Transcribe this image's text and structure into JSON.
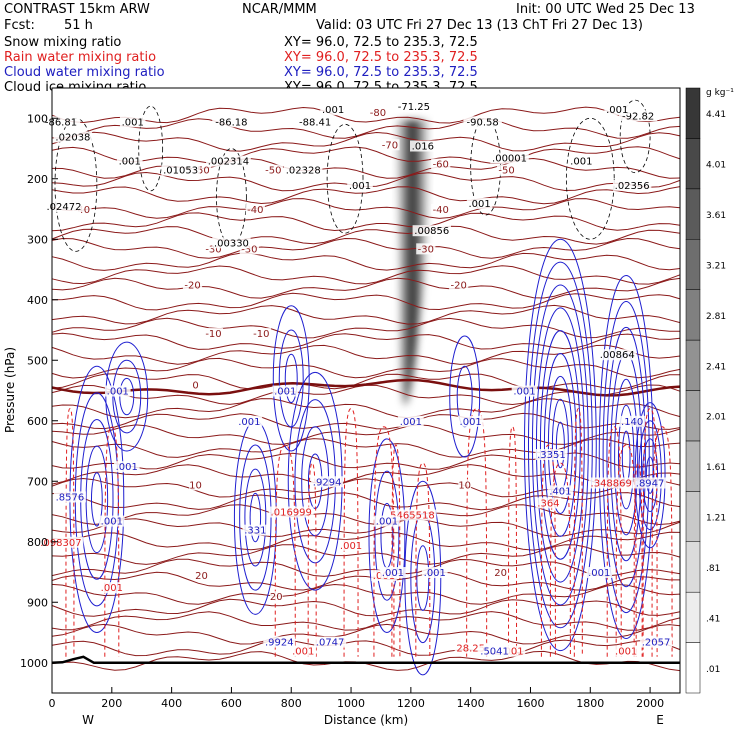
{
  "header": {
    "model": "CONTRAST 15km ARW",
    "org": "NCAR/MMM",
    "init": "Init: 00 UTC Wed 25 Dec 13",
    "fcst_label": "Fcst:",
    "fcst_value": "51 h",
    "valid": "Valid: 03 UTC Fri 27 Dec 13 (13 ChT Fri 27 Dec 13)"
  },
  "fields": [
    {
      "label": "Snow mixing ratio",
      "xy": "XY=  96.0, 72.5 to 235.3, 72.5",
      "color": "#000000"
    },
    {
      "label": "Rain water mixing ratio",
      "xy": "XY=  96.0, 72.5 to 235.3, 72.5",
      "color": "#e02020"
    },
    {
      "label": "Cloud water mixing ratio",
      "xy": "XY=  96.0, 72.5 to 235.3, 72.5",
      "color": "#2020c0"
    },
    {
      "label": "Cloud ice mixing ratio",
      "xy": "XY=  96.0, 72.5 to 235.3, 72.5",
      "color": "#000000"
    }
  ],
  "chart_data": {
    "type": "heatmap",
    "xlabel": "Distance (km)",
    "ylabel": "Pressure (hPa)",
    "xlim": [
      0,
      2100
    ],
    "ylim": [
      1050,
      50
    ],
    "xticks": [
      "0",
      "200",
      "400",
      "600",
      "800",
      "1000",
      "1200",
      "1400",
      "1600",
      "1800",
      "2000"
    ],
    "yticks": [
      "100",
      "200",
      "300",
      "400",
      "500",
      "600",
      "700",
      "800",
      "900",
      "1000"
    ],
    "x_end_labels": {
      "left": "W",
      "right": "E"
    },
    "colorbar": {
      "unit": "g kg⁻¹",
      "levels": [
        ".01",
        ".41",
        ".81",
        "1.21",
        "1.61",
        "2.01",
        "2.41",
        "2.81",
        "3.21",
        "3.61",
        "4.01",
        "4.41"
      ]
    },
    "temperature_labels": [
      {
        "text": "-80",
        "x": 1090,
        "p": 95
      },
      {
        "text": "-70",
        "x": 1130,
        "p": 148
      },
      {
        "text": "-60",
        "x": 1300,
        "p": 180
      },
      {
        "text": "-50",
        "x": 500,
        "p": 190
      },
      {
        "text": "-50",
        "x": 740,
        "p": 190
      },
      {
        "text": "-50",
        "x": 1520,
        "p": 190
      },
      {
        "text": "-40",
        "x": 100,
        "p": 255
      },
      {
        "text": "-40",
        "x": 680,
        "p": 255
      },
      {
        "text": "-40",
        "x": 1300,
        "p": 255
      },
      {
        "text": "-30",
        "x": 540,
        "p": 320
      },
      {
        "text": "-30",
        "x": 660,
        "p": 320
      },
      {
        "text": "-30",
        "x": 1250,
        "p": 320
      },
      {
        "text": "-20",
        "x": 470,
        "p": 380
      },
      {
        "text": "-20",
        "x": 1360,
        "p": 380
      },
      {
        "text": "-10",
        "x": 540,
        "p": 460
      },
      {
        "text": "-10",
        "x": 700,
        "p": 460
      },
      {
        "text": "0",
        "x": 480,
        "p": 545
      },
      {
        "text": "10",
        "x": 480,
        "p": 710
      },
      {
        "text": "10",
        "x": 1380,
        "p": 710
      },
      {
        "text": "20",
        "x": 500,
        "p": 860
      },
      {
        "text": "20",
        "x": 750,
        "p": 895
      },
      {
        "text": "20",
        "x": 1500,
        "p": 855
      }
    ],
    "annotations_black": [
      {
        "text": "-86.81",
        "x": 30,
        "p": 110
      },
      {
        "text": ".02038",
        "x": 70,
        "p": 135
      },
      {
        "text": ".001",
        "x": 270,
        "p": 110
      },
      {
        "text": "-86.18",
        "x": 600,
        "p": 110
      },
      {
        "text": "-88.41",
        "x": 880,
        "p": 110
      },
      {
        "text": "-71.25",
        "x": 1210,
        "p": 85
      },
      {
        "text": "-90.58",
        "x": 1440,
        "p": 110
      },
      {
        "text": "-92.82",
        "x": 1960,
        "p": 100
      },
      {
        "text": ".001",
        "x": 1890,
        "p": 90
      },
      {
        "text": ".001",
        "x": 940,
        "p": 90
      },
      {
        "text": ".001",
        "x": 260,
        "p": 175
      },
      {
        "text": ".01053",
        "x": 430,
        "p": 190
      },
      {
        "text": ".002314",
        "x": 590,
        "p": 175
      },
      {
        "text": ".02328",
        "x": 840,
        "p": 190
      },
      {
        "text": ".016",
        "x": 1240,
        "p": 150
      },
      {
        "text": ".00001",
        "x": 1530,
        "p": 170
      },
      {
        "text": ".001",
        "x": 1770,
        "p": 175
      },
      {
        "text": ".02356",
        "x": 1940,
        "p": 215
      },
      {
        "text": ".02472",
        "x": 40,
        "p": 250
      },
      {
        "text": ".001",
        "x": 1030,
        "p": 215
      },
      {
        "text": ".001",
        "x": 1430,
        "p": 245
      },
      {
        "text": ".00330",
        "x": 600,
        "p": 310
      },
      {
        "text": ".00856",
        "x": 1270,
        "p": 290
      },
      {
        "text": ".00864",
        "x": 1890,
        "p": 495
      }
    ],
    "annotations_red": [
      {
        "text": ".016999",
        "x": 800,
        "p": 755
      },
      {
        "text": ".5465518",
        "x": 1200,
        "p": 760
      },
      {
        "text": ".364",
        "x": 1660,
        "p": 740
      },
      {
        "text": ".348869",
        "x": 1870,
        "p": 707
      },
      {
        "text": ".098307",
        "x": 30,
        "p": 805
      },
      {
        "text": ".001",
        "x": 200,
        "p": 880
      },
      {
        "text": ".001",
        "x": 1000,
        "p": 810
      },
      {
        "text": ".001",
        "x": 1110,
        "p": 860
      },
      {
        "text": ".001",
        "x": 840,
        "p": 985
      },
      {
        "text": "28.25",
        "x": 1400,
        "p": 980
      },
      {
        "text": ".001",
        "x": 1540,
        "p": 985
      },
      {
        "text": ".001",
        "x": 1920,
        "p": 985
      }
    ],
    "annotations_blue": [
      {
        "text": ".001",
        "x": 220,
        "p": 555
      },
      {
        "text": ".001",
        "x": 780,
        "p": 555
      },
      {
        "text": ".001",
        "x": 660,
        "p": 605
      },
      {
        "text": ".001",
        "x": 1200,
        "p": 605
      },
      {
        "text": ".001",
        "x": 1400,
        "p": 605
      },
      {
        "text": ".001",
        "x": 1580,
        "p": 555
      },
      {
        "text": ".001",
        "x": 250,
        "p": 680
      },
      {
        "text": ".8576",
        "x": 60,
        "p": 730
      },
      {
        "text": ".9294",
        "x": 920,
        "p": 705
      },
      {
        "text": ".3351",
        "x": 1670,
        "p": 660
      },
      {
        "text": ".401",
        "x": 1700,
        "p": 720
      },
      {
        "text": ".140",
        "x": 1940,
        "p": 605
      },
      {
        "text": ".8947",
        "x": 2000,
        "p": 707
      },
      {
        "text": ".001",
        "x": 200,
        "p": 770
      },
      {
        "text": ".331",
        "x": 680,
        "p": 785
      },
      {
        "text": ".001",
        "x": 1120,
        "p": 770
      },
      {
        "text": ".001",
        "x": 1140,
        "p": 855
      },
      {
        "text": ".001",
        "x": 1280,
        "p": 855
      },
      {
        "text": ".001",
        "x": 1830,
        "p": 855
      },
      {
        "text": ".9924",
        "x": 760,
        "p": 970
      },
      {
        "text": ".0747",
        "x": 930,
        "p": 970
      },
      {
        "text": ".5041",
        "x": 1480,
        "p": 985
      },
      {
        "text": ".2057",
        "x": 2020,
        "p": 970
      }
    ]
  }
}
